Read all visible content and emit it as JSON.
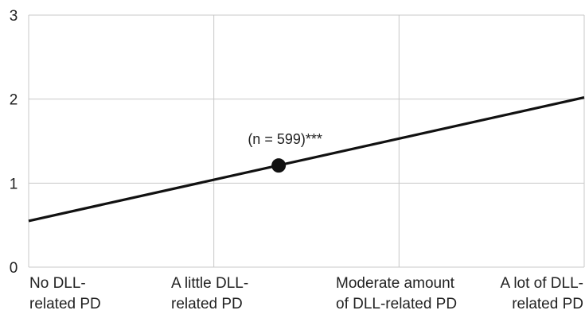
{
  "chart_data": {
    "type": "line",
    "categories": [
      [
        "No DLL-",
        "related PD"
      ],
      [
        "A little DLL-",
        "related PD"
      ],
      [
        "Moderate amount",
        "of DLL-related PD"
      ],
      [
        "A lot of DLL-",
        "related PD"
      ]
    ],
    "x_range": [
      0,
      3
    ],
    "ylim": [
      0,
      3
    ],
    "yticks": [
      "0",
      "1",
      "2",
      "3"
    ],
    "series": [
      {
        "x": [
          0,
          3
        ],
        "y": [
          0.55,
          2.02
        ]
      }
    ],
    "points": [
      {
        "x": 1.35,
        "y": 1.21,
        "label": "(n = 599)***"
      }
    ],
    "grid": true,
    "line_color": "#111111",
    "grid_color": "#c8c8c8"
  }
}
